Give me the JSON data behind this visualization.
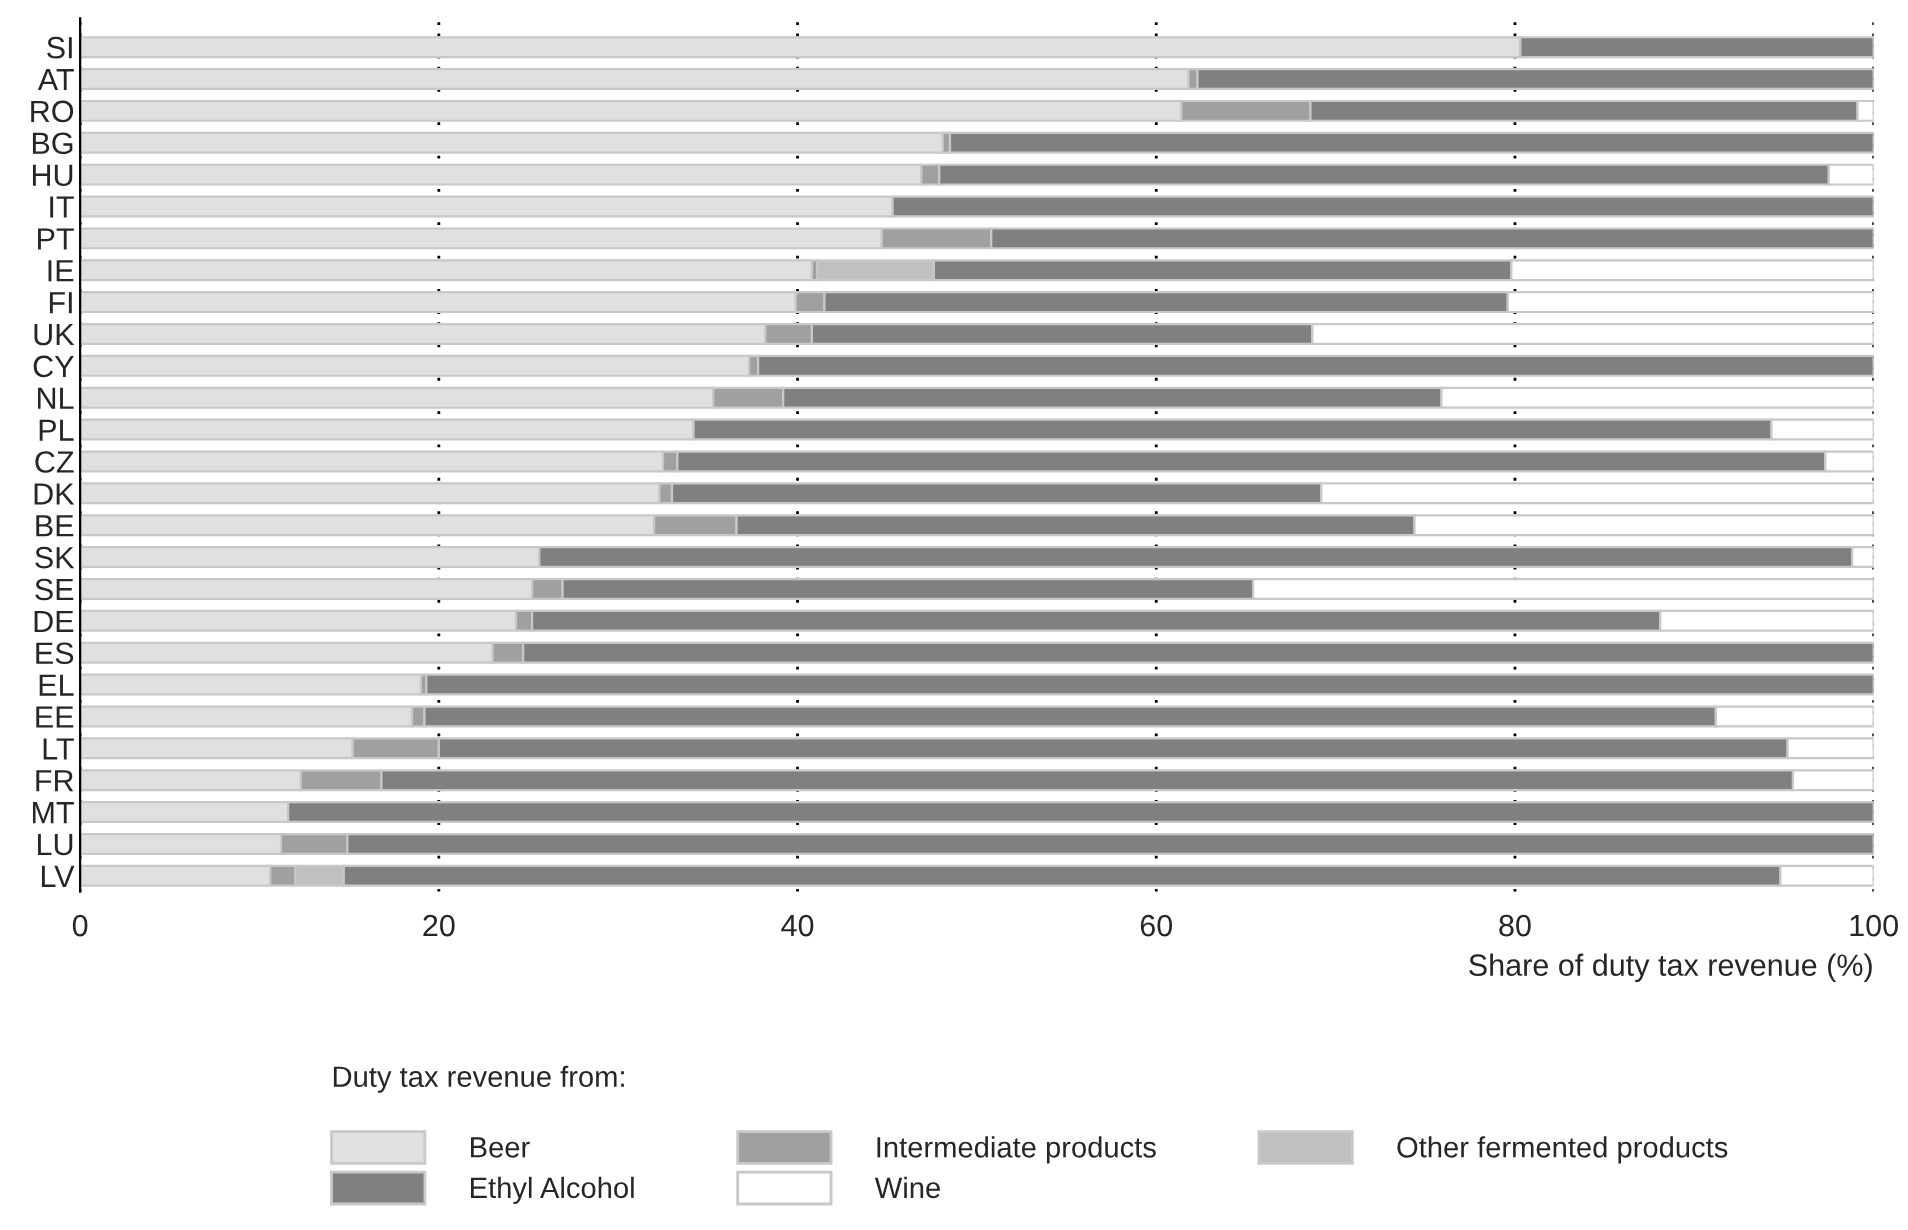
{
  "chart_data": {
    "type": "bar",
    "orientation": "horizontal",
    "stacked": true,
    "categories": [
      "SI",
      "AT",
      "RO",
      "BG",
      "HU",
      "IT",
      "PT",
      "IE",
      "FI",
      "UK",
      "CY",
      "NL",
      "PL",
      "CZ",
      "DK",
      "BE",
      "SK",
      "SE",
      "DE",
      "ES",
      "EL",
      "EE",
      "LT",
      "FR",
      "MT",
      "LU",
      "LV"
    ],
    "series": [
      {
        "name": "Beer",
        "color": "#e0e0e0",
        "values": [
          80.3,
          61.8,
          61.4,
          48.1,
          46.9,
          45.3,
          44.7,
          40.8,
          39.9,
          38.2,
          37.3,
          35.3,
          34.2,
          32.5,
          32.3,
          32.0,
          25.6,
          25.2,
          24.3,
          23.0,
          19.0,
          18.5,
          15.2,
          12.3,
          11.6,
          11.2,
          10.6
        ]
      },
      {
        "name": "Intermediate products",
        "color": "#a0a0a0",
        "values": [
          null,
          0.5,
          7.2,
          0.4,
          1.0,
          null,
          6.1,
          0.3,
          1.6,
          2.6,
          0.5,
          3.9,
          null,
          0.8,
          0.7,
          4.6,
          null,
          1.7,
          0.9,
          1.7,
          0.3,
          0.7,
          4.8,
          4.5,
          null,
          3.7,
          1.4
        ]
      },
      {
        "name": "Other fermented products",
        "color": "#c0c0c0",
        "values": [
          null,
          null,
          null,
          null,
          null,
          null,
          null,
          6.5,
          null,
          null,
          null,
          null,
          null,
          null,
          null,
          null,
          null,
          null,
          null,
          null,
          null,
          null,
          null,
          null,
          null,
          null,
          2.7
        ]
      },
      {
        "name": "Ethyl Alcohol",
        "color": "#808080",
        "values": [
          19.7,
          37.7,
          30.5,
          51.5,
          49.6,
          54.7,
          49.2,
          32.2,
          38.1,
          27.9,
          62.2,
          36.7,
          60.1,
          64.0,
          36.2,
          37.8,
          73.2,
          38.5,
          62.9,
          75.3,
          80.7,
          72.0,
          75.2,
          78.7,
          88.4,
          85.1,
          80.1
        ]
      },
      {
        "name": "Wine",
        "color": "#ffffff",
        "values": [
          null,
          null,
          0.9,
          null,
          2.5,
          null,
          null,
          20.2,
          20.4,
          31.3,
          null,
          24.1,
          5.7,
          2.7,
          30.8,
          25.6,
          1.2,
          34.6,
          11.9,
          null,
          null,
          8.8,
          4.8,
          4.5,
          null,
          null,
          5.2
        ]
      }
    ],
    "xlim": [
      0,
      100
    ],
    "xticks": [
      0,
      20,
      40,
      60,
      80,
      100
    ],
    "xlabel": "Share of duty tax revenue (%)",
    "legend_title": "Duty tax revenue from:",
    "legend": "bottom",
    "grid": "x"
  }
}
